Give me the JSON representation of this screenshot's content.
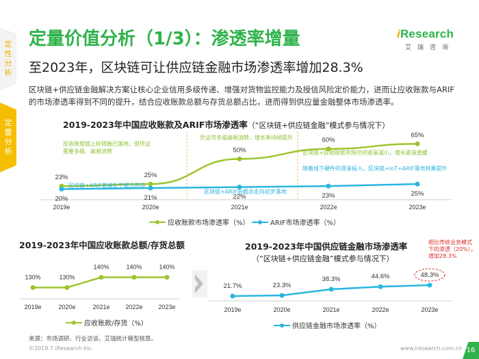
{
  "side_tabs": [
    {
      "chars": [
        "定",
        "性",
        "分",
        "析"
      ]
    },
    {
      "chars": [
        "定",
        "量",
        "分",
        "析"
      ]
    }
  ],
  "title": "定量价值分析（1/3）：渗透率增量",
  "subtitle": "至2023年，区块链可让供应链金融市场渗透率增加28.3%",
  "description": "区块链+供应链金融解决方案让核心企业信用多级传递、增强对货物监控能力及授信风险定价能力，进而让应收账款与ARIF的市场渗透率得到不同的提升，结合应收账款总额与存货总额占比，进而得到供应量金融整体市场渗透率。",
  "logo": {
    "main_i": "i",
    "main_rest": "Research",
    "sub": "艾瑞咨询"
  },
  "chart_data": [
    {
      "type": "line",
      "title": "2019-2023年中国应收账款及ARIF市场渗透率",
      "title_paren": "（“区块链+供应链金融”模式参与情况下）",
      "categories": [
        "2019e",
        "2020e",
        "2021e",
        "2022e",
        "2023e"
      ],
      "series": [
        {
          "name": "应收账款市场渗透率（%）",
          "values": [
            23,
            25,
            50,
            60,
            65
          ],
          "labels": [
            "23%",
            "25%",
            "50%",
            "60%",
            "65%"
          ],
          "color": "#9dc42d"
        },
        {
          "name": "ARIF市场渗透率（%）",
          "values": [
            20,
            21,
            22,
            23,
            25
          ],
          "labels": [
            "20%",
            "21%",
            "22%",
            "23%",
            "25%"
          ],
          "color": "#28b6e0"
        }
      ],
      "annotations": {
        "green": [
          {
            "lines": [
              "应收账款链上拆转融已落地，但凭证",
              "需要多级、高频流转"
            ]
          },
          {
            "lines": [
              "凭证可多级高频流转，增长率持续提升"
            ]
          },
          {
            "lines": [
              "区块链+应收账款市场空间逐渐减小，增长逐渐放缓"
            ]
          }
        ],
        "blue": [
          {
            "lines": [
              "区块链+ARIF普遍处于概念阶段"
            ]
          },
          {
            "lines": [
              "区块链+ARIF由概念走向初步落地"
            ]
          },
          {
            "lines": [
              "随着线下硬件的逐渐投入，区块链+IoT+ARIF落地将果提升"
            ]
          }
        ]
      }
    },
    {
      "type": "line",
      "title": "2019-2023年中国应收账款总额/存货总额",
      "categories": [
        "2019e",
        "2020e",
        "2021e",
        "2022e",
        "2023e"
      ],
      "series": [
        {
          "name": "应收账款/存货（%）",
          "values": [
            130,
            130,
            140,
            140,
            140
          ],
          "labels": [
            "130%",
            "130%",
            "140%",
            "140%",
            "140%"
          ],
          "color": "#9dc42d"
        }
      ]
    },
    {
      "type": "line",
      "title": "2019-2023年中国供应链金融市场渗透率",
      "subtitle": "（“区块链+供应链金融”模式参与情况下）",
      "categories": [
        "2019e",
        "2020e",
        "2021e",
        "2022e",
        "2023e"
      ],
      "series": [
        {
          "name": "供应链金融市场渗透率（%）",
          "values": [
            21.7,
            23.3,
            38.3,
            44.6,
            48.3
          ],
          "labels": [
            "21.7%",
            "23.3%",
            "38.3%",
            "44.6%",
            "48.3%"
          ],
          "color": "#28b6e0"
        }
      ],
      "highlight_note": [
        "相比传统业务模式",
        "下的渗透（20%），",
        "增加28.3%"
      ]
    }
  ],
  "source": "来源：市场调研、行业访谈、艾瑞统计模型核算。",
  "footer_left": "©2019.7 iResearch Inc.",
  "footer_right": "www.iresearch.com.cn",
  "page_number": "16"
}
